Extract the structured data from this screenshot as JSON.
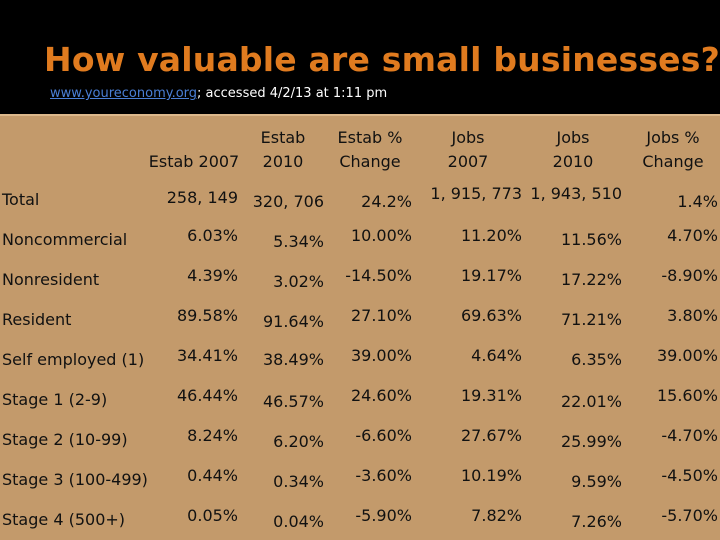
{
  "title": "How valuable are small businesses?",
  "source": {
    "link_text": "www.youreconomy.org",
    "rest": "; accessed  4/2/13 at 1:11 pm"
  },
  "colors": {
    "title": "#e07b1f",
    "table_bg": "#c39a6b",
    "link": "#4a7fd6"
  },
  "headers": [
    "Estab 2007",
    [
      "Estab",
      "2010"
    ],
    [
      "Estab %",
      "Change"
    ],
    [
      "Jobs",
      "2007"
    ],
    [
      "Jobs",
      "2010"
    ],
    [
      "Jobs %",
      "Change"
    ]
  ],
  "header_estab2007": "Estab 2007",
  "header_estab2010_l1": "Estab",
  "header_estab2010_l2": "2010",
  "header_estabchg_l1": "Estab %",
  "header_estabchg_l2": "Change",
  "header_jobs2007_l1": "Jobs",
  "header_jobs2007_l2": "2007",
  "header_jobs2010_l1": "Jobs",
  "header_jobs2010_l2": "2010",
  "header_jobschg_l1": "Jobs %",
  "header_jobschg_l2": "Change",
  "rows": [
    {
      "label": "Total",
      "estab2007": "258, 149",
      "estab2010": "320, 706",
      "estabchg": "24.2%",
      "jobs2007": "1, 915, 773",
      "jobs2010": "1, 943, 510",
      "jobschg": "1.4%"
    },
    {
      "label": "Noncommercial",
      "estab2007": "6.03%",
      "estab2010": "5.34%",
      "estabchg": "10.00%",
      "jobs2007": "11.20%",
      "jobs2010": "11.56%",
      "jobschg": "4.70%"
    },
    {
      "label": "Nonresident",
      "estab2007": "4.39%",
      "estab2010": "3.02%",
      "estabchg": "-14.50%",
      "jobs2007": "19.17%",
      "jobs2010": "17.22%",
      "jobschg": "-8.90%"
    },
    {
      "label": "Resident",
      "estab2007": "89.58%",
      "estab2010": "91.64%",
      "estabchg": "27.10%",
      "jobs2007": "69.63%",
      "jobs2010": "71.21%",
      "jobschg": "3.80%"
    },
    {
      "label": "Self employed (1)",
      "estab2007": "34.41%",
      "estab2010": "38.49%",
      "estabchg": "39.00%",
      "jobs2007": "4.64%",
      "jobs2010": "6.35%",
      "jobschg": "39.00%"
    },
    {
      "label": "Stage 1 (2-9)",
      "estab2007": "46.44%",
      "estab2010": "46.57%",
      "estabchg": "24.60%",
      "jobs2007": "19.31%",
      "jobs2010": "22.01%",
      "jobschg": "15.60%"
    },
    {
      "label": "Stage 2 (10-99)",
      "estab2007": "8.24%",
      "estab2010": "6.20%",
      "estabchg": "-6.60%",
      "jobs2007": "27.67%",
      "jobs2010": "25.99%",
      "jobschg": "-4.70%"
    },
    {
      "label": "Stage 3 (100-499)",
      "estab2007": "0.44%",
      "estab2010": "0.34%",
      "estabchg": "-3.60%",
      "jobs2007": "10.19%",
      "jobs2010": "9.59%",
      "jobschg": "-4.50%"
    },
    {
      "label": "Stage 4 (500+)",
      "estab2007": "0.05%",
      "estab2010": "0.04%",
      "estabchg": "-5.90%",
      "jobs2007": "7.82%",
      "jobs2010": "7.26%",
      "jobschg": "-5.70%"
    }
  ]
}
